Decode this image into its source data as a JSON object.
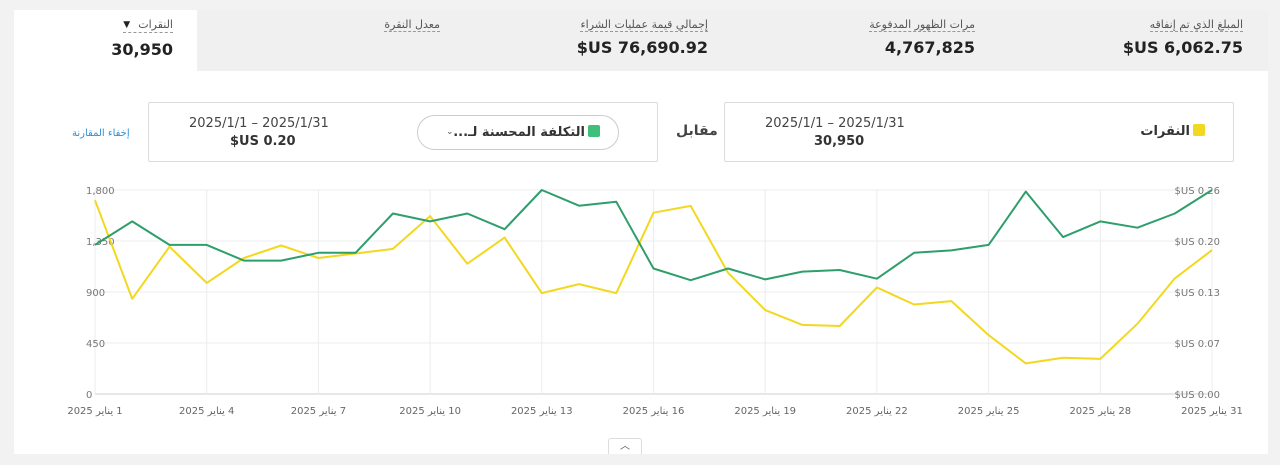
{
  "metrics": [
    {
      "id": "spend",
      "label": "المبلغ الذي تم إنفاقه",
      "value": "$US 6,062.75"
    },
    {
      "id": "impressions",
      "label": "مرات الظهور المدفوعة",
      "value": "4,767,825"
    },
    {
      "id": "purchase",
      "label": "إجمالي قيمة عمليات الشراء",
      "value": "$US 76,690.92"
    },
    {
      "id": "ctr",
      "label": "معدل النقرة",
      "value": ""
    },
    {
      "id": "clicks",
      "label": "النقرات",
      "value": "30,950"
    }
  ],
  "compare": {
    "primary": {
      "name": "النقرات",
      "range": "2025/1/1 – 2025/1/31",
      "value": "30,950",
      "color": "#f2d81f"
    },
    "vs_label": "مقابل",
    "secondary": {
      "name": "التكلفة المحسنة لـ...",
      "range": "2025/1/1 – 2025/1/31",
      "value": "$US 0.20",
      "color": "#2e9e6b"
    },
    "hide_link": "إخفاء المقارنة"
  },
  "chart_data": {
    "type": "line",
    "x": [
      "1 يناير 2025",
      "2",
      "3",
      "4 يناير 2025",
      "5",
      "6",
      "7 يناير 2025",
      "8",
      "9",
      "10 يناير 2025",
      "11",
      "12",
      "13 يناير 2025",
      "14",
      "15",
      "16 يناير 2025",
      "17",
      "18",
      "19 يناير 2025",
      "20",
      "21",
      "22 يناير 2025",
      "23",
      "24",
      "25 يناير 2025",
      "26",
      "27",
      "28 يناير 2025",
      "29",
      "30",
      "31 يناير 2025"
    ],
    "xtick_labels": [
      "1 يناير 2025",
      "4 يناير 2025",
      "7 يناير 2025",
      "10 يناير 2025",
      "13 يناير 2025",
      "16 يناير 2025",
      "19 يناير 2025",
      "22 يناير 2025",
      "25 يناير 2025",
      "28 يناير 2025",
      "31 يناير 2025"
    ],
    "left_ticks": [
      "0",
      "450",
      "900",
      "1,350",
      "1,800"
    ],
    "right_ticks": [
      "$US 0.00",
      "$US 0.07",
      "$US 0.13",
      "$US 0.20",
      "$US 0.26"
    ],
    "ylim_left": [
      0,
      1800
    ],
    "ylim_right": [
      0,
      0.26
    ],
    "series": [
      {
        "name": "النقرات",
        "axis": "left",
        "color": "#f2d81f",
        "values": [
          1710,
          840,
          1300,
          980,
          1200,
          1310,
          1200,
          1240,
          1280,
          1570,
          1150,
          1380,
          890,
          970,
          890,
          1600,
          1660,
          1070,
          740,
          610,
          600,
          940,
          790,
          820,
          520,
          270,
          320,
          310,
          620,
          1020,
          1270
        ]
      },
      {
        "name": "التكلفة المحسنة لـ...",
        "axis": "right",
        "color": "#2e9e6b",
        "values": [
          0.19,
          0.22,
          0.19,
          0.19,
          0.17,
          0.17,
          0.18,
          0.18,
          0.23,
          0.22,
          0.23,
          0.21,
          0.26,
          0.24,
          0.245,
          0.16,
          0.145,
          0.16,
          0.146,
          0.156,
          0.158,
          0.147,
          0.18,
          0.183,
          0.19,
          0.258,
          0.2,
          0.22,
          0.212,
          0.23,
          0.26
        ]
      }
    ]
  }
}
